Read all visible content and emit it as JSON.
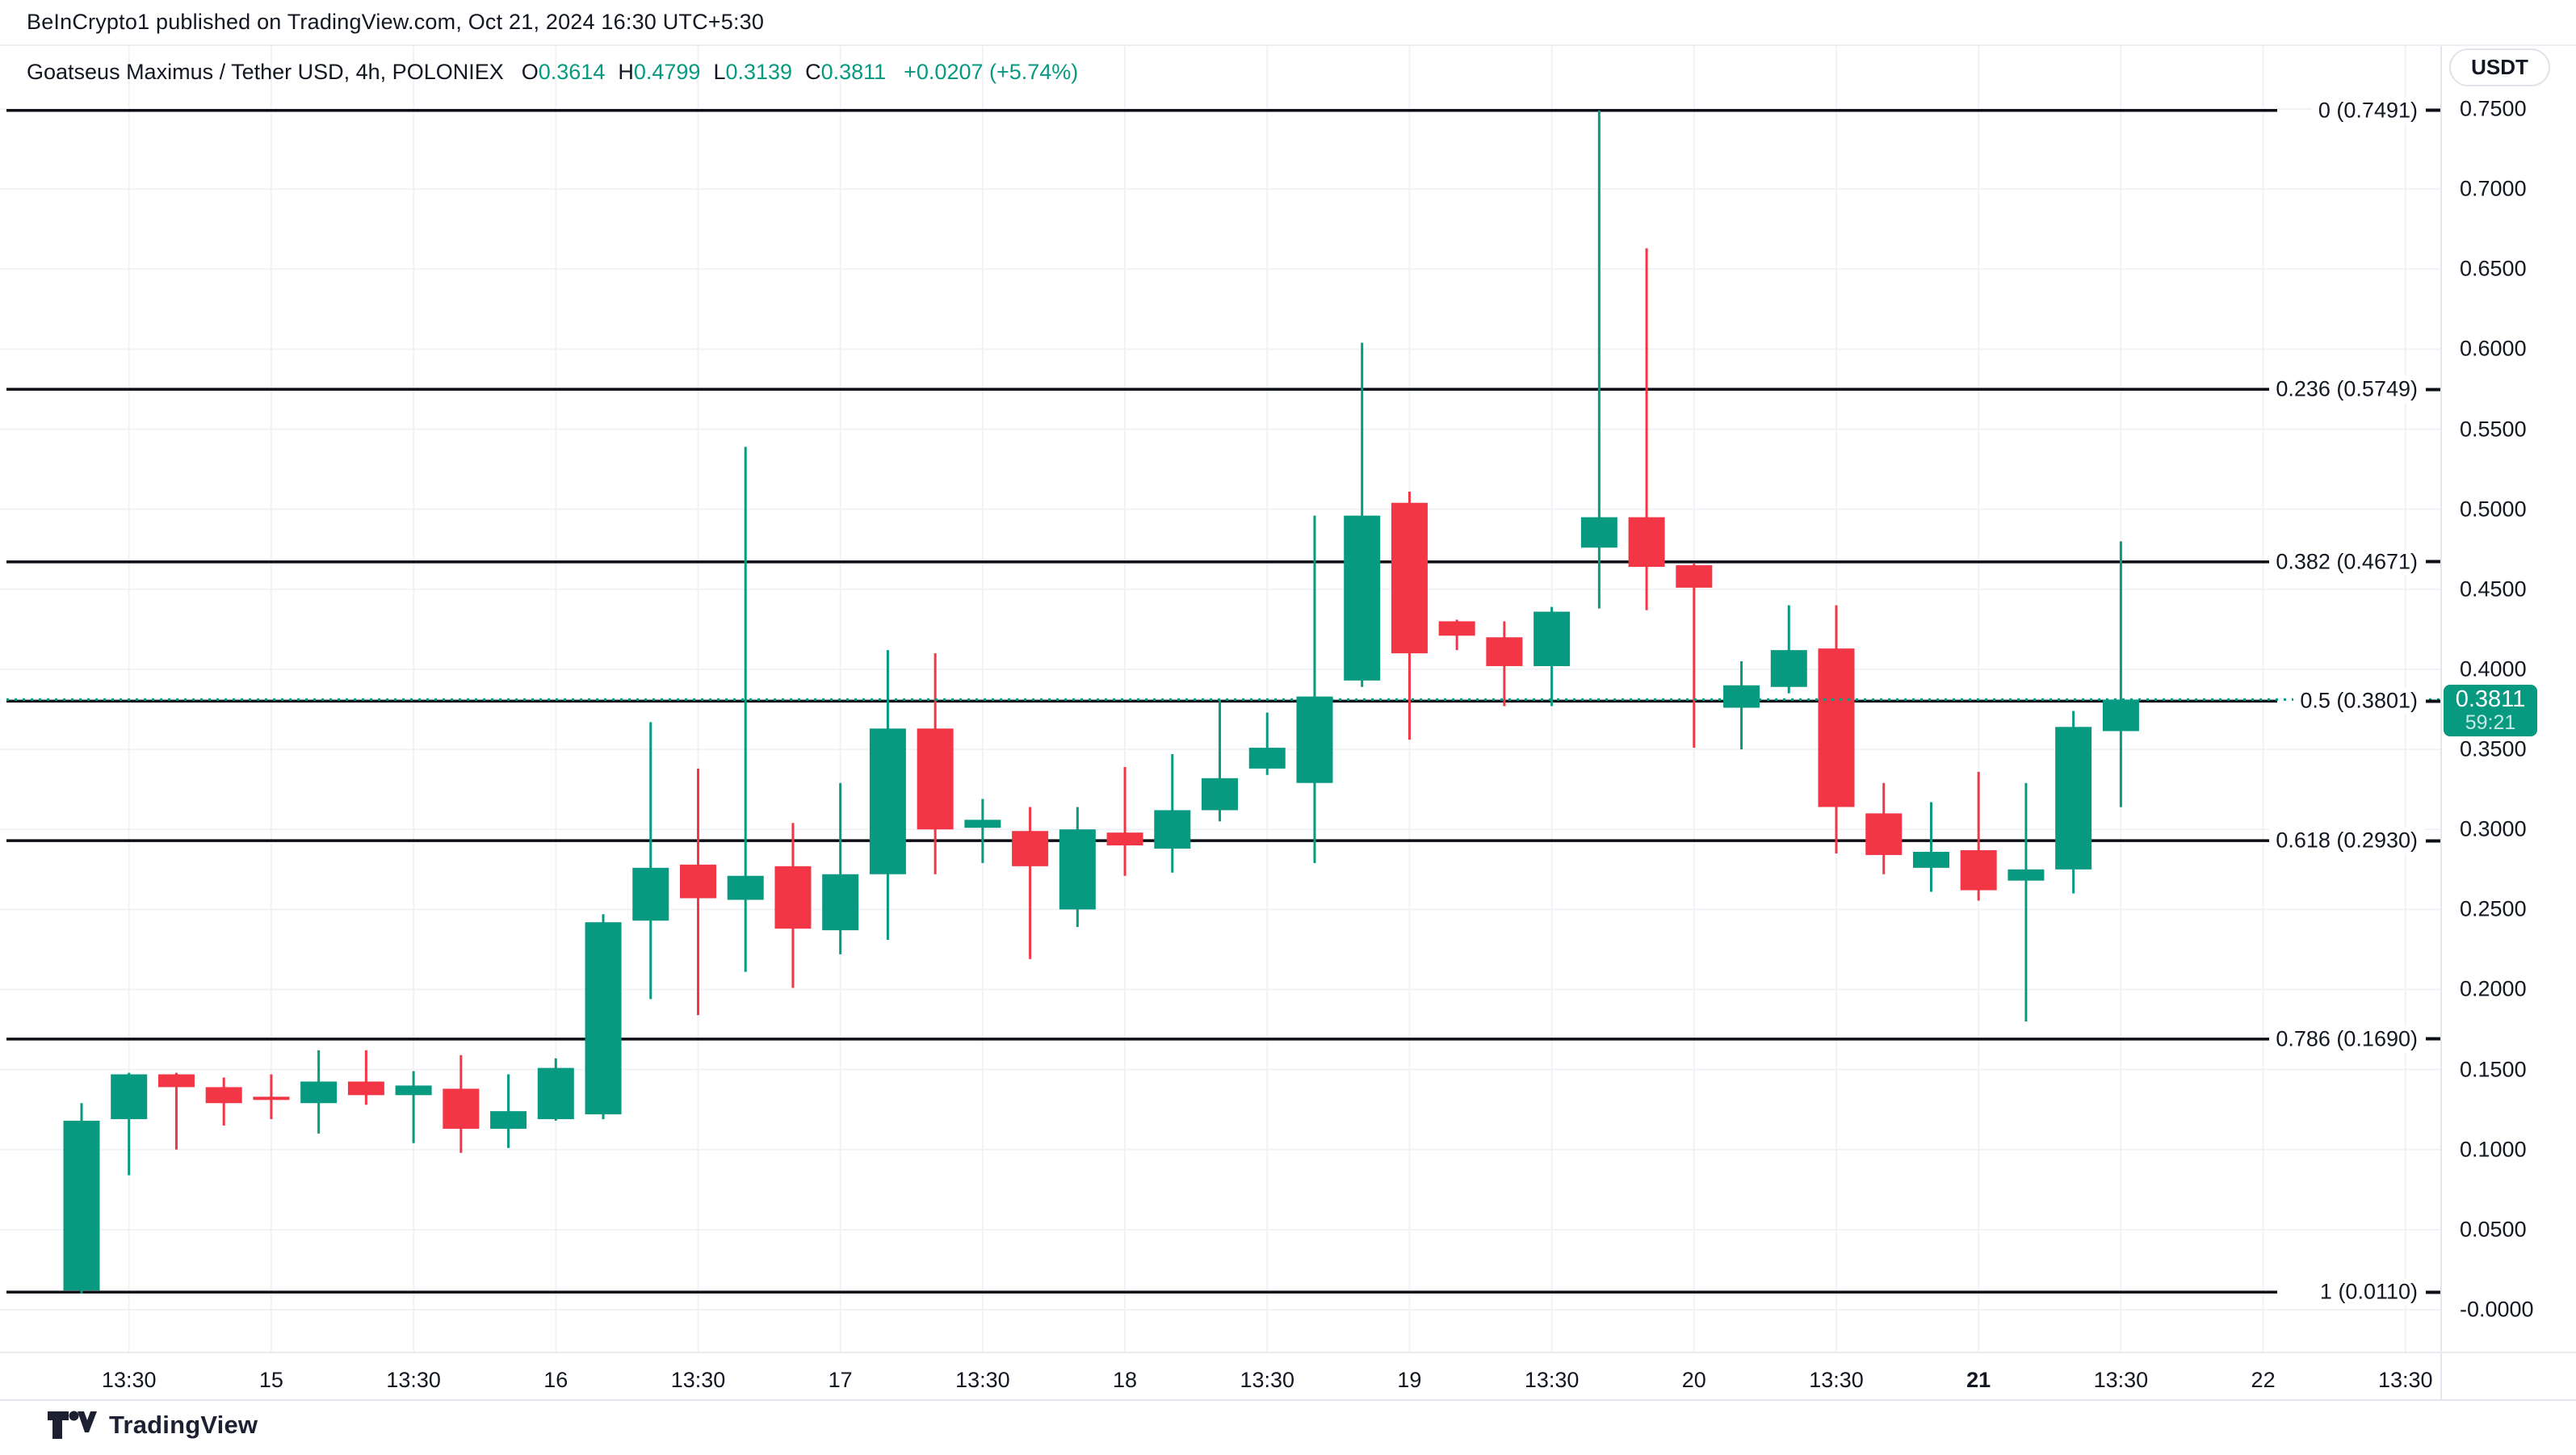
{
  "header": {
    "published_line": "BeInCrypto1 published on TradingView.com, Oct 21, 2024 16:30 UTC+5:30"
  },
  "legend": {
    "symbol_line": "Goatseus Maximus / Tether USD, 4h, POLONIEX",
    "ohlc": [
      {
        "label": "O",
        "value": "0.3614"
      },
      {
        "label": "H",
        "value": "0.4799"
      },
      {
        "label": "L",
        "value": "0.3139"
      },
      {
        "label": "C",
        "value": "0.3811"
      }
    ],
    "change": "+0.0207 (+5.74%)"
  },
  "price_axis": {
    "currency_button": "USDT",
    "ticks": [
      {
        "label": "0.7500",
        "price": 0.75
      },
      {
        "label": "0.7000",
        "price": 0.7
      },
      {
        "label": "0.6500",
        "price": 0.65
      },
      {
        "label": "0.6000",
        "price": 0.6
      },
      {
        "label": "0.5500",
        "price": 0.55
      },
      {
        "label": "0.5000",
        "price": 0.5
      },
      {
        "label": "0.4500",
        "price": 0.45
      },
      {
        "label": "0.4000",
        "price": 0.4
      },
      {
        "label": "0.3500",
        "price": 0.35
      },
      {
        "label": "0.3000",
        "price": 0.3
      },
      {
        "label": "0.2500",
        "price": 0.25
      },
      {
        "label": "0.2000",
        "price": 0.2
      },
      {
        "label": "0.1500",
        "price": 0.15
      },
      {
        "label": "0.1000",
        "price": 0.1
      },
      {
        "label": "0.0500",
        "price": 0.05
      },
      {
        "label": "-0.0000",
        "price": 0.0
      }
    ],
    "last_price_badge": {
      "price": "0.3811",
      "countdown": "59:21"
    }
  },
  "time_axis": {
    "ticks": [
      {
        "label": "13:30",
        "candle_index": 1,
        "bold": false
      },
      {
        "label": "15",
        "candle_index": 4,
        "bold": false
      },
      {
        "label": "13:30",
        "candle_index": 7,
        "bold": false
      },
      {
        "label": "16",
        "candle_index": 10,
        "bold": false
      },
      {
        "label": "13:30",
        "candle_index": 13,
        "bold": false
      },
      {
        "label": "17",
        "candle_index": 16,
        "bold": false
      },
      {
        "label": "13:30",
        "candle_index": 19,
        "bold": false
      },
      {
        "label": "18",
        "candle_index": 22,
        "bold": false
      },
      {
        "label": "13:30",
        "candle_index": 25,
        "bold": false
      },
      {
        "label": "19",
        "candle_index": 28,
        "bold": false
      },
      {
        "label": "13:30",
        "candle_index": 31,
        "bold": false
      },
      {
        "label": "20",
        "candle_index": 34,
        "bold": false
      },
      {
        "label": "13:30",
        "candle_index": 37,
        "bold": false
      },
      {
        "label": "21",
        "candle_index": 40,
        "bold": true
      },
      {
        "label": "13:30",
        "candle_index": 43,
        "bold": false
      },
      {
        "label": "22",
        "candle_index": 46,
        "bold": false
      },
      {
        "label": "13:30",
        "candle_index": 49,
        "bold": false
      }
    ]
  },
  "fib_levels": [
    {
      "label": "0 (0.7491)",
      "price": 0.7491
    },
    {
      "label": "0.236 (0.5749)",
      "price": 0.5749
    },
    {
      "label": "0.382 (0.4671)",
      "price": 0.4671
    },
    {
      "label": "0.5 (0.3801)",
      "price": 0.3801
    },
    {
      "label": "0.618 (0.2930)",
      "price": 0.293
    },
    {
      "label": "0.786 (0.1690)",
      "price": 0.169
    },
    {
      "label": "1 (0.0110)",
      "price": 0.011
    }
  ],
  "last_price_line": {
    "price": 0.3811
  },
  "footer": {
    "brand": "TradingView"
  },
  "colors": {
    "up": "#089981",
    "down": "#F23645",
    "fib_line": "#0c0e15",
    "last_price_dotted": "#089981",
    "grid": "#f0f2f6",
    "text": "#131722",
    "axis_border": "#e0e3eb",
    "badge_bg": "#089981",
    "badge_text": "#ffffff"
  },
  "chart_data": {
    "type": "candlestick",
    "title": "Goatseus Maximus / Tether USD",
    "interval": "4h",
    "exchange": "POLONIEX",
    "quote_currency": "USDT",
    "y_axis": {
      "min": 0.0,
      "max": 0.75,
      "tick_step": 0.05,
      "grid": true
    },
    "x_tick_labels": [
      "13:30",
      "15",
      "13:30",
      "16",
      "13:30",
      "17",
      "13:30",
      "18",
      "13:30",
      "19",
      "13:30",
      "20",
      "13:30",
      "21",
      "13:30",
      "22",
      "13:30"
    ],
    "ohlc_note": "candles are [open, high, low, close], 4h bars Oct 14 - Oct 21 2024",
    "candles": [
      [
        0.012,
        0.129,
        0.01,
        0.118
      ],
      [
        0.119,
        0.148,
        0.084,
        0.147
      ],
      [
        0.147,
        0.148,
        0.1,
        0.139
      ],
      [
        0.139,
        0.145,
        0.115,
        0.129
      ],
      [
        0.133,
        0.147,
        0.119,
        0.131
      ],
      [
        0.129,
        0.162,
        0.11,
        0.1425
      ],
      [
        0.1425,
        0.162,
        0.128,
        0.134
      ],
      [
        0.134,
        0.149,
        0.104,
        0.14
      ],
      [
        0.138,
        0.159,
        0.098,
        0.113
      ],
      [
        0.113,
        0.147,
        0.101,
        0.124
      ],
      [
        0.119,
        0.157,
        0.118,
        0.151
      ],
      [
        0.122,
        0.247,
        0.119,
        0.242
      ],
      [
        0.243,
        0.367,
        0.194,
        0.276
      ],
      [
        0.278,
        0.338,
        0.184,
        0.257
      ],
      [
        0.256,
        0.539,
        0.211,
        0.271
      ],
      [
        0.277,
        0.304,
        0.201,
        0.238
      ],
      [
        0.237,
        0.329,
        0.222,
        0.272
      ],
      [
        0.272,
        0.412,
        0.231,
        0.363
      ],
      [
        0.363,
        0.41,
        0.272,
        0.3
      ],
      [
        0.301,
        0.319,
        0.279,
        0.306
      ],
      [
        0.299,
        0.314,
        0.219,
        0.277
      ],
      [
        0.25,
        0.314,
        0.239,
        0.3
      ],
      [
        0.298,
        0.339,
        0.271,
        0.29
      ],
      [
        0.288,
        0.347,
        0.273,
        0.312
      ],
      [
        0.312,
        0.381,
        0.305,
        0.332
      ],
      [
        0.338,
        0.373,
        0.334,
        0.351
      ],
      [
        0.329,
        0.496,
        0.279,
        0.383
      ],
      [
        0.393,
        0.604,
        0.389,
        0.496
      ],
      [
        0.504,
        0.511,
        0.356,
        0.41
      ],
      [
        0.43,
        0.431,
        0.412,
        0.421
      ],
      [
        0.42,
        0.43,
        0.377,
        0.402
      ],
      [
        0.402,
        0.439,
        0.377,
        0.436
      ],
      [
        0.476,
        0.7491,
        0.438,
        0.495
      ],
      [
        0.495,
        0.663,
        0.437,
        0.464
      ],
      [
        0.465,
        0.466,
        0.351,
        0.451
      ],
      [
        0.376,
        0.405,
        0.35,
        0.39
      ],
      [
        0.389,
        0.44,
        0.385,
        0.412
      ],
      [
        0.413,
        0.44,
        0.285,
        0.314
      ],
      [
        0.31,
        0.329,
        0.272,
        0.284
      ],
      [
        0.276,
        0.317,
        0.261,
        0.286
      ],
      [
        0.287,
        0.336,
        0.2555,
        0.262
      ],
      [
        0.268,
        0.329,
        0.18,
        0.275
      ],
      [
        0.275,
        0.374,
        0.26,
        0.364
      ],
      [
        0.3614,
        0.4799,
        0.3139,
        0.3811
      ]
    ],
    "fib_retracement": [
      {
        "level": 0,
        "price": 0.7491
      },
      {
        "level": 0.236,
        "price": 0.5749
      },
      {
        "level": 0.382,
        "price": 0.4671
      },
      {
        "level": 0.5,
        "price": 0.3801
      },
      {
        "level": 0.618,
        "price": 0.293
      },
      {
        "level": 0.786,
        "price": 0.169
      },
      {
        "level": 1,
        "price": 0.011
      }
    ],
    "last_price": 0.3811,
    "legend_position": "top-left"
  }
}
